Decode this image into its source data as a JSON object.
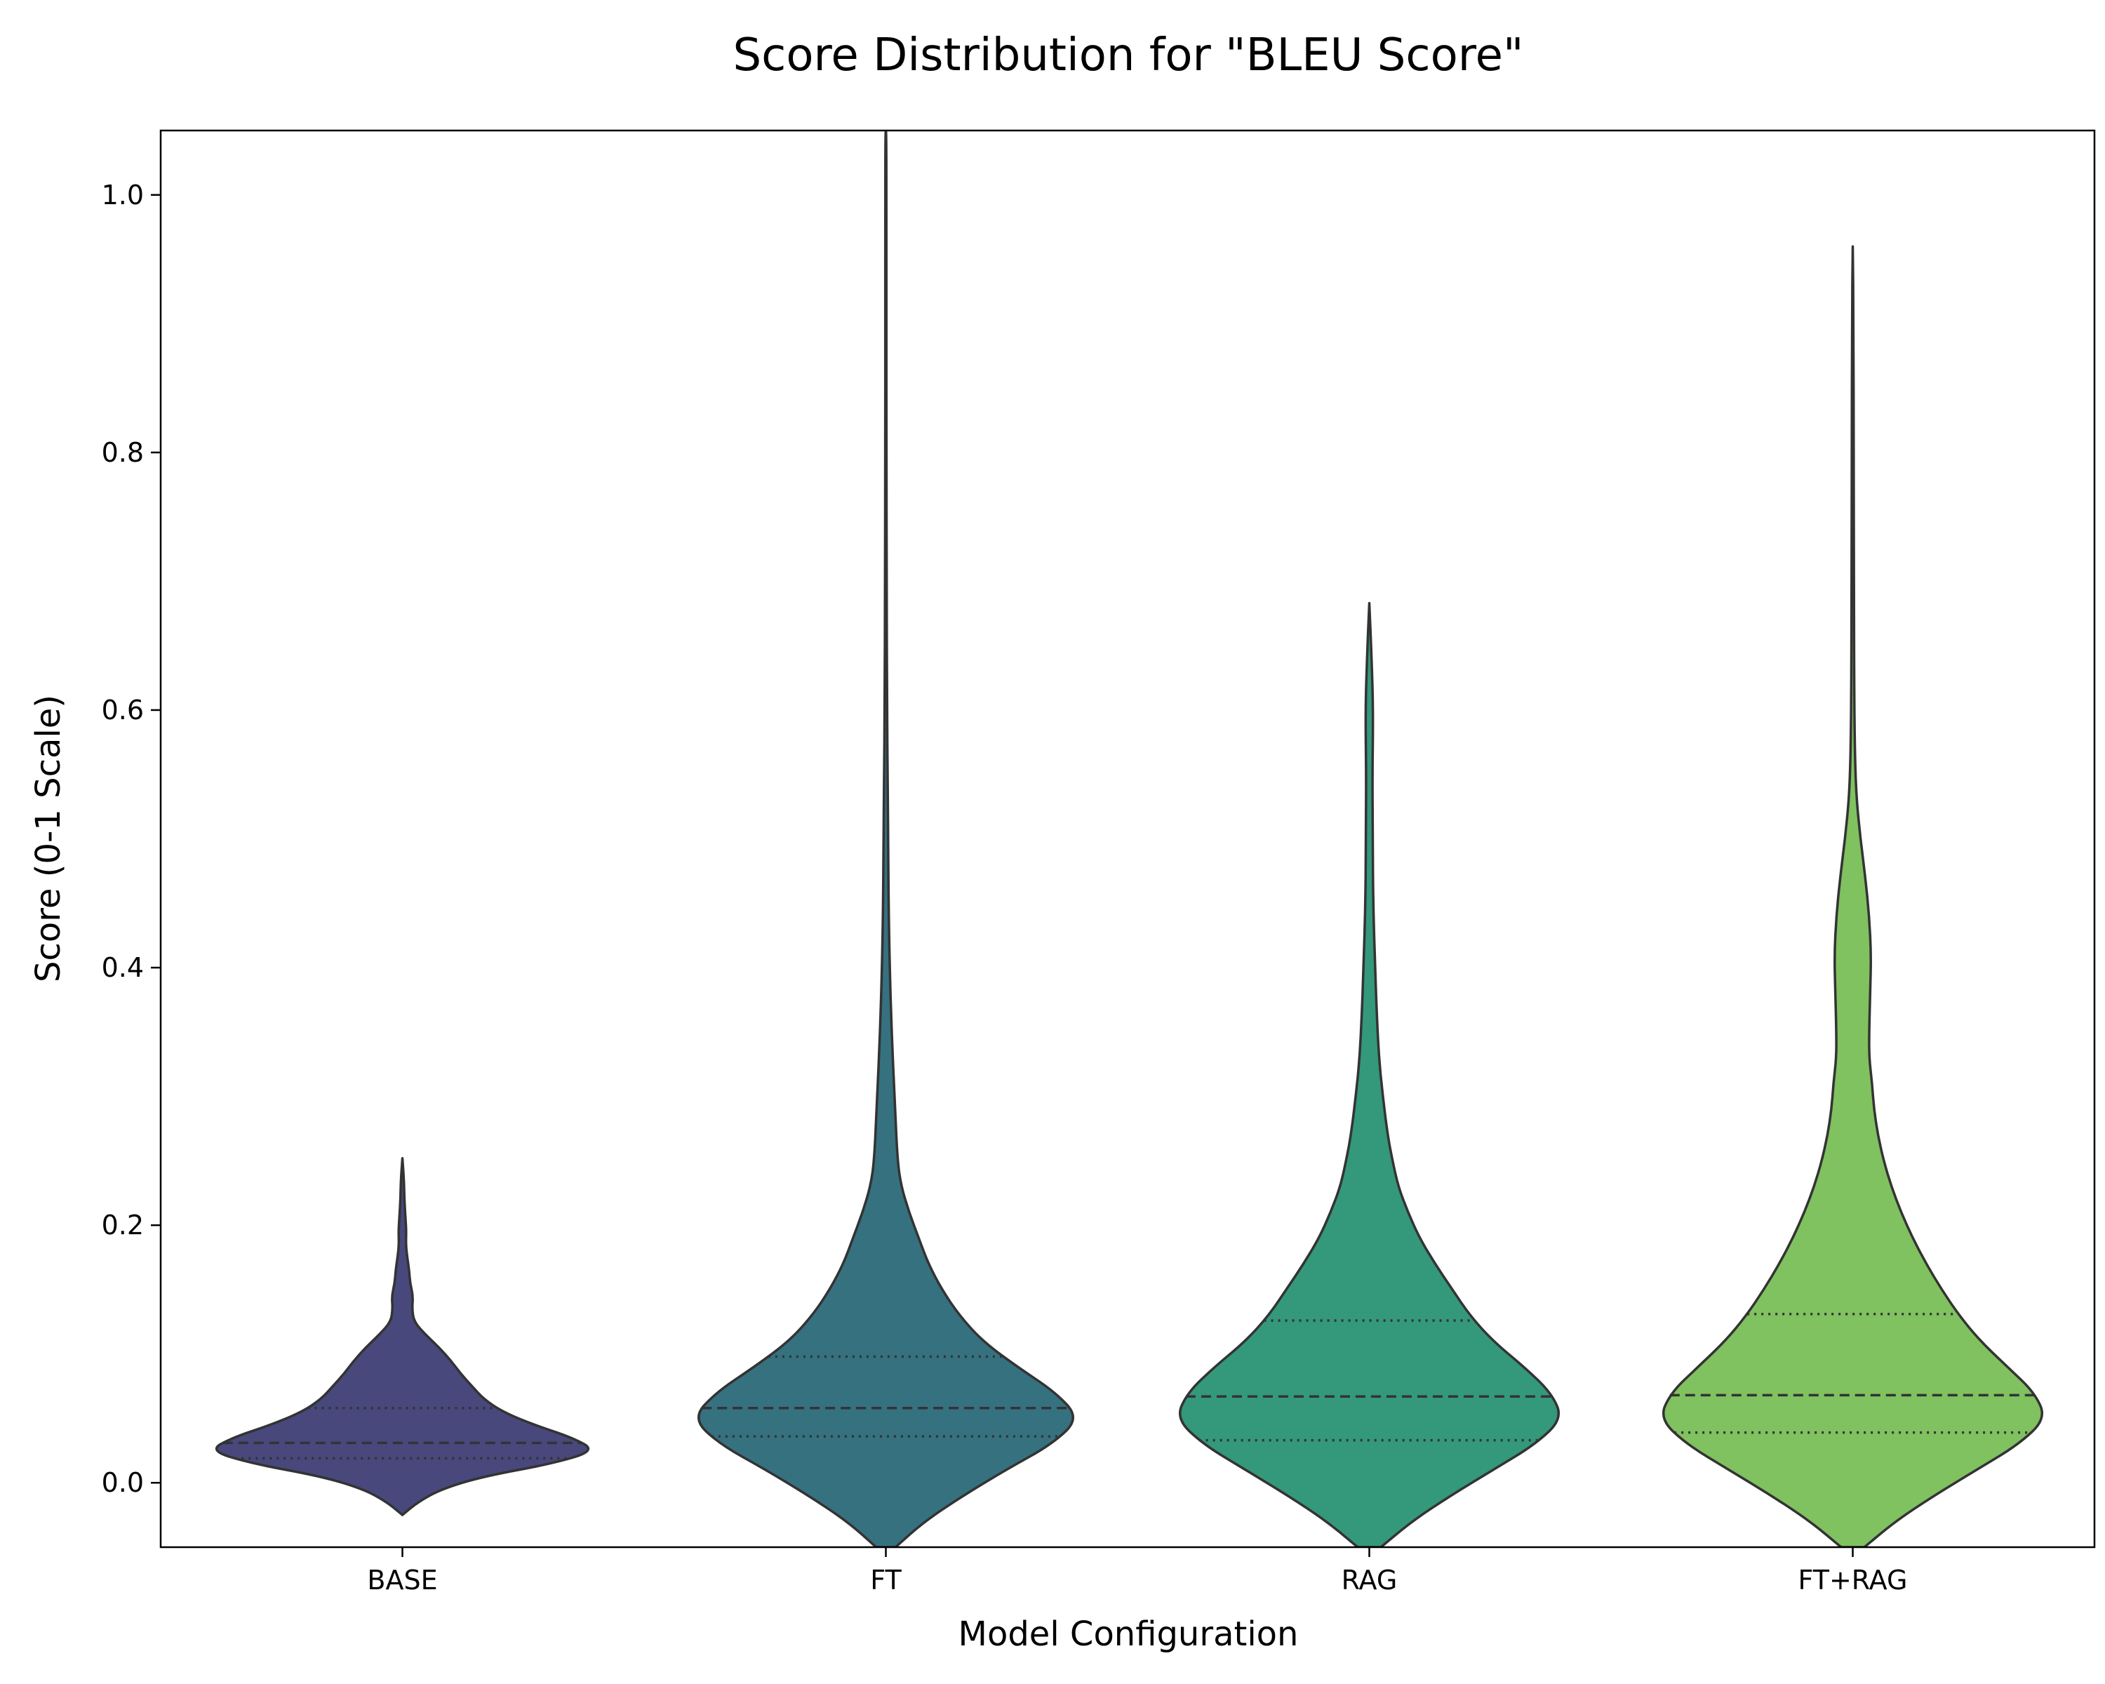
{
  "chart_data": {
    "type": "violin",
    "title": "Score Distribution for \"BLEU Score\"",
    "xlabel": "Model Configuration",
    "ylabel": "Score (0-1 Scale)",
    "ylim": [
      -0.05,
      1.05
    ],
    "yticks": [
      0.0,
      0.2,
      0.4,
      0.6,
      0.8,
      1.0
    ],
    "ytick_labels": [
      "0.0",
      "0.2",
      "0.4",
      "0.6",
      "0.8",
      "1.0"
    ],
    "grid": false,
    "legend": "none",
    "categories": [
      "BASE",
      "FT",
      "RAG",
      "FT+RAG"
    ],
    "series": [
      {
        "category": "BASE",
        "color": "#48487c",
        "min": -0.025,
        "max": 0.252,
        "q1": 0.019,
        "median": 0.031,
        "q3": 0.058,
        "density": [
          [
            -0.025,
            0.0
          ],
          [
            -0.015,
            0.08
          ],
          [
            -0.005,
            0.2
          ],
          [
            0.005,
            0.42
          ],
          [
            0.015,
            0.78
          ],
          [
            0.025,
            1.0
          ],
          [
            0.035,
            0.88
          ],
          [
            0.045,
            0.68
          ],
          [
            0.055,
            0.52
          ],
          [
            0.065,
            0.42
          ],
          [
            0.075,
            0.36
          ],
          [
            0.085,
            0.3
          ],
          [
            0.095,
            0.25
          ],
          [
            0.105,
            0.19
          ],
          [
            0.115,
            0.12
          ],
          [
            0.125,
            0.06
          ],
          [
            0.135,
            0.05
          ],
          [
            0.145,
            0.055
          ],
          [
            0.155,
            0.04
          ],
          [
            0.165,
            0.035
          ],
          [
            0.175,
            0.025
          ],
          [
            0.185,
            0.018
          ],
          [
            0.195,
            0.02
          ],
          [
            0.205,
            0.016
          ],
          [
            0.22,
            0.01
          ],
          [
            0.235,
            0.008
          ],
          [
            0.252,
            0.0
          ]
        ]
      },
      {
        "category": "FT",
        "color": "#367180",
        "min": -0.05,
        "max": 1.05,
        "q1": 0.036,
        "median": 0.058,
        "q3": 0.098,
        "density": [
          [
            -0.05,
            0.05
          ],
          [
            -0.03,
            0.2
          ],
          [
            -0.01,
            0.4
          ],
          [
            0.01,
            0.62
          ],
          [
            0.03,
            0.86
          ],
          [
            0.05,
            1.0
          ],
          [
            0.07,
            0.88
          ],
          [
            0.09,
            0.68
          ],
          [
            0.11,
            0.5
          ],
          [
            0.13,
            0.38
          ],
          [
            0.15,
            0.29
          ],
          [
            0.17,
            0.22
          ],
          [
            0.19,
            0.17
          ],
          [
            0.21,
            0.12
          ],
          [
            0.23,
            0.08
          ],
          [
            0.25,
            0.06
          ],
          [
            0.3,
            0.045
          ],
          [
            0.35,
            0.03
          ],
          [
            0.4,
            0.02
          ],
          [
            0.45,
            0.014
          ],
          [
            0.5,
            0.012
          ],
          [
            0.55,
            0.009
          ],
          [
            0.6,
            0.006
          ],
          [
            0.7,
            0.004
          ],
          [
            0.8,
            0.003
          ],
          [
            0.9,
            0.003
          ],
          [
            1.0,
            0.003
          ],
          [
            1.05,
            0.002
          ]
        ]
      },
      {
        "category": "RAG",
        "color": "#34987b",
        "min": -0.05,
        "max": 0.683,
        "q1": 0.033,
        "median": 0.067,
        "q3": 0.126,
        "density": [
          [
            -0.05,
            0.06
          ],
          [
            -0.03,
            0.22
          ],
          [
            -0.01,
            0.42
          ],
          [
            0.01,
            0.64
          ],
          [
            0.03,
            0.86
          ],
          [
            0.05,
            1.0
          ],
          [
            0.07,
            0.94
          ],
          [
            0.09,
            0.8
          ],
          [
            0.11,
            0.64
          ],
          [
            0.13,
            0.52
          ],
          [
            0.15,
            0.43
          ],
          [
            0.17,
            0.34
          ],
          [
            0.19,
            0.26
          ],
          [
            0.21,
            0.2
          ],
          [
            0.23,
            0.15
          ],
          [
            0.25,
            0.12
          ],
          [
            0.27,
            0.095
          ],
          [
            0.3,
            0.07
          ],
          [
            0.33,
            0.05
          ],
          [
            0.36,
            0.04
          ],
          [
            0.4,
            0.03
          ],
          [
            0.45,
            0.02
          ],
          [
            0.5,
            0.018
          ],
          [
            0.55,
            0.016
          ],
          [
            0.6,
            0.02
          ],
          [
            0.64,
            0.012
          ],
          [
            0.683,
            0.0
          ]
        ]
      },
      {
        "category": "FT+RAG",
        "color": "#80c160",
        "min": -0.05,
        "max": 0.96,
        "q1": 0.039,
        "median": 0.068,
        "q3": 0.131,
        "density": [
          [
            -0.05,
            0.06
          ],
          [
            -0.03,
            0.22
          ],
          [
            -0.01,
            0.42
          ],
          [
            0.01,
            0.64
          ],
          [
            0.03,
            0.86
          ],
          [
            0.05,
            1.0
          ],
          [
            0.07,
            0.94
          ],
          [
            0.09,
            0.8
          ],
          [
            0.11,
            0.66
          ],
          [
            0.13,
            0.55
          ],
          [
            0.15,
            0.46
          ],
          [
            0.17,
            0.38
          ],
          [
            0.19,
            0.31
          ],
          [
            0.21,
            0.25
          ],
          [
            0.23,
            0.2
          ],
          [
            0.25,
            0.16
          ],
          [
            0.27,
            0.13
          ],
          [
            0.29,
            0.11
          ],
          [
            0.31,
            0.1
          ],
          [
            0.33,
            0.085
          ],
          [
            0.35,
            0.085
          ],
          [
            0.38,
            0.09
          ],
          [
            0.41,
            0.095
          ],
          [
            0.44,
            0.085
          ],
          [
            0.47,
            0.065
          ],
          [
            0.5,
            0.04
          ],
          [
            0.53,
            0.02
          ],
          [
            0.56,
            0.012
          ],
          [
            0.6,
            0.008
          ],
          [
            0.7,
            0.006
          ],
          [
            0.8,
            0.005
          ],
          [
            0.9,
            0.004
          ],
          [
            0.96,
            0.0
          ]
        ]
      }
    ]
  }
}
